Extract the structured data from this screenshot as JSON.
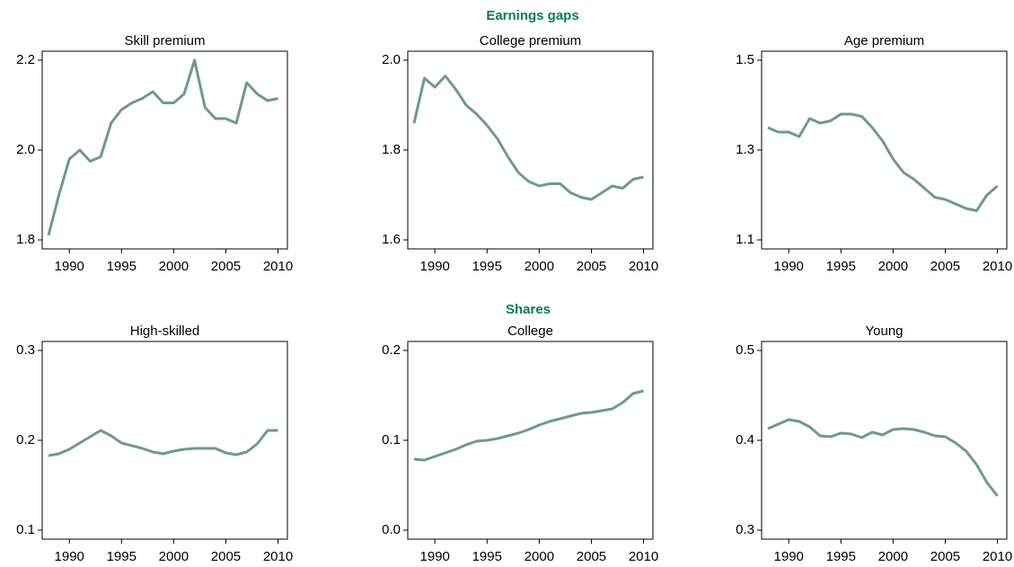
{
  "headings": [
    "Earnings gaps",
    "Shares"
  ],
  "chart_data": [
    {
      "type": "line",
      "title": "Skill premium",
      "color": "#6f9a8a",
      "x": [
        1988,
        1989,
        1990,
        1991,
        1992,
        1993,
        1994,
        1995,
        1996,
        1997,
        1998,
        1999,
        2000,
        2001,
        2002,
        2003,
        2004,
        2005,
        2006,
        2007,
        2008,
        2009,
        2010
      ],
      "values": [
        1.81,
        1.9,
        1.98,
        2.0,
        1.975,
        1.985,
        2.06,
        2.09,
        2.105,
        2.115,
        2.13,
        2.105,
        2.105,
        2.125,
        2.2,
        2.095,
        2.07,
        2.07,
        2.06,
        2.15,
        2.125,
        2.11,
        2.115
      ],
      "xlim": [
        1987.4,
        2010.9
      ],
      "xticks": [
        1990,
        1995,
        2000,
        2005,
        2010
      ],
      "ylim": [
        1.78,
        2.22
      ],
      "yticks": [
        1.8,
        {
          "value": 2,
          "label": "2.0"
        },
        2.2
      ]
    },
    {
      "type": "line",
      "title": "College premium",
      "color": "#6f9a8a",
      "x": [
        1988,
        1989,
        1990,
        1991,
        1992,
        1993,
        1994,
        1995,
        1996,
        1997,
        1998,
        1999,
        2000,
        2001,
        2002,
        2003,
        2004,
        2005,
        2006,
        2007,
        2008,
        2009,
        2010
      ],
      "values": [
        1.86,
        1.96,
        1.94,
        1.965,
        1.935,
        1.9,
        1.88,
        1.855,
        1.825,
        1.785,
        1.75,
        1.73,
        1.72,
        1.725,
        1.725,
        1.705,
        1.695,
        1.69,
        1.705,
        1.72,
        1.715,
        1.735,
        1.74
      ],
      "xlim": [
        1987.4,
        2010.9
      ],
      "xticks": [
        1990,
        1995,
        2000,
        2005,
        2010
      ],
      "ylim": [
        1.58,
        2.02
      ],
      "yticks": [
        1.6,
        1.8,
        {
          "value": 2,
          "label": "2.0"
        }
      ]
    },
    {
      "type": "line",
      "title": "Age premium",
      "color": "#6f9a8a",
      "x": [
        1988,
        1989,
        1990,
        1991,
        1992,
        1993,
        1994,
        1995,
        1996,
        1997,
        1998,
        1999,
        2000,
        2001,
        2002,
        2003,
        2004,
        2005,
        2006,
        2007,
        2008,
        2009,
        2010
      ],
      "values": [
        1.35,
        1.34,
        1.34,
        1.33,
        1.37,
        1.36,
        1.365,
        1.38,
        1.38,
        1.375,
        1.35,
        1.32,
        1.28,
        1.25,
        1.235,
        1.215,
        1.195,
        1.19,
        1.18,
        1.17,
        1.165,
        1.2,
        1.22
      ],
      "xlim": [
        1987.4,
        2010.9
      ],
      "xticks": [
        1990,
        1995,
        2000,
        2005,
        2010
      ],
      "ylim": [
        1.08,
        1.52
      ],
      "yticks": [
        1.1,
        1.3,
        1.5
      ]
    },
    {
      "type": "line",
      "title": "High-skilled",
      "color": "#6f9a8a",
      "x": [
        1988,
        1989,
        1990,
        1991,
        1992,
        1993,
        1994,
        1995,
        1996,
        1997,
        1998,
        1999,
        2000,
        2001,
        2002,
        2003,
        2004,
        2005,
        2006,
        2007,
        2008,
        2009,
        2010
      ],
      "values": [
        0.183,
        0.185,
        0.19,
        0.197,
        0.204,
        0.211,
        0.205,
        0.197,
        0.194,
        0.191,
        0.187,
        0.185,
        0.188,
        0.19,
        0.191,
        0.191,
        0.191,
        0.186,
        0.184,
        0.187,
        0.196,
        0.211,
        0.211
      ],
      "xlim": [
        1987.4,
        2010.9
      ],
      "xticks": [
        1990,
        1995,
        2000,
        2005,
        2010
      ],
      "ylim": [
        0.09,
        0.31
      ],
      "yticks": [
        0.1,
        0.2,
        0.3
      ]
    },
    {
      "type": "line",
      "title": "College",
      "color": "#6f9a8a",
      "x": [
        1988,
        1989,
        1990,
        1991,
        1992,
        1993,
        1994,
        1995,
        1996,
        1997,
        1998,
        1999,
        2000,
        2001,
        2002,
        2003,
        2004,
        2005,
        2006,
        2007,
        2008,
        2009,
        2010
      ],
      "values": [
        0.079,
        0.078,
        0.082,
        0.086,
        0.09,
        0.095,
        0.099,
        0.1,
        0.102,
        0.105,
        0.108,
        0.112,
        0.117,
        0.121,
        0.124,
        0.127,
        0.13,
        0.131,
        0.133,
        0.135,
        0.142,
        0.152,
        0.155
      ],
      "xlim": [
        1987.4,
        2010.9
      ],
      "xticks": [
        1990,
        1995,
        2000,
        2005,
        2010
      ],
      "ylim": [
        -0.01,
        0.21
      ],
      "yticks": [
        {
          "value": 0,
          "label": "0.0"
        },
        0.1,
        0.2
      ]
    },
    {
      "type": "line",
      "title": "Young",
      "color": "#6f9a8a",
      "x": [
        1988,
        1989,
        1990,
        1991,
        1992,
        1993,
        1994,
        1995,
        1996,
        1997,
        1998,
        1999,
        2000,
        2001,
        2002,
        2003,
        2004,
        2005,
        2006,
        2007,
        2008,
        2009,
        2010
      ],
      "values": [
        0.413,
        0.418,
        0.423,
        0.421,
        0.415,
        0.405,
        0.404,
        0.408,
        0.407,
        0.403,
        0.409,
        0.406,
        0.412,
        0.413,
        0.412,
        0.409,
        0.405,
        0.404,
        0.397,
        0.388,
        0.373,
        0.353,
        0.338
      ],
      "xlim": [
        1987.4,
        2010.9
      ],
      "xticks": [
        1990,
        1995,
        2000,
        2005,
        2010
      ],
      "ylim": [
        0.29,
        0.51
      ],
      "yticks": [
        0.3,
        0.4,
        0.5
      ]
    }
  ]
}
